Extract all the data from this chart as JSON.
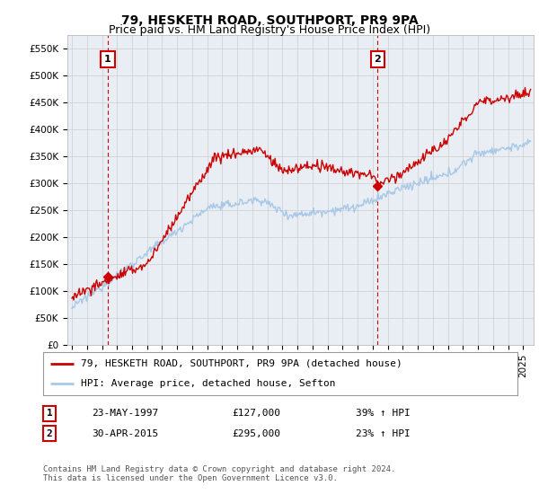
{
  "title": "79, HESKETH ROAD, SOUTHPORT, PR9 9PA",
  "subtitle": "Price paid vs. HM Land Registry's House Price Index (HPI)",
  "ylim": [
    0,
    575000
  ],
  "yticks": [
    0,
    50000,
    100000,
    150000,
    200000,
    250000,
    300000,
    350000,
    400000,
    450000,
    500000,
    550000
  ],
  "ytick_labels": [
    "£0",
    "£50K",
    "£100K",
    "£150K",
    "£200K",
    "£250K",
    "£300K",
    "£350K",
    "£400K",
    "£450K",
    "£500K",
    "£550K"
  ],
  "hpi_color": "#a8c8e8",
  "price_color": "#cc0000",
  "vline_color": "#cc0000",
  "chart_bg": "#e8eef4",
  "sale1_date_num": 1997.39,
  "sale1_price": 127000,
  "sale2_date_num": 2015.33,
  "sale2_price": 295000,
  "legend_label1": "79, HESKETH ROAD, SOUTHPORT, PR9 9PA (detached house)",
  "legend_label2": "HPI: Average price, detached house, Sefton",
  "table_row1": [
    "1",
    "23-MAY-1997",
    "£127,000",
    "39% ↑ HPI"
  ],
  "table_row2": [
    "2",
    "30-APR-2015",
    "£295,000",
    "23% ↑ HPI"
  ],
  "footer": "Contains HM Land Registry data © Crown copyright and database right 2024.\nThis data is licensed under the Open Government Licence v3.0.",
  "bg_color": "#ffffff",
  "grid_color": "#cccccc",
  "title_fontsize": 10,
  "subtitle_fontsize": 9,
  "tick_fontsize": 7.5,
  "legend_fontsize": 8
}
